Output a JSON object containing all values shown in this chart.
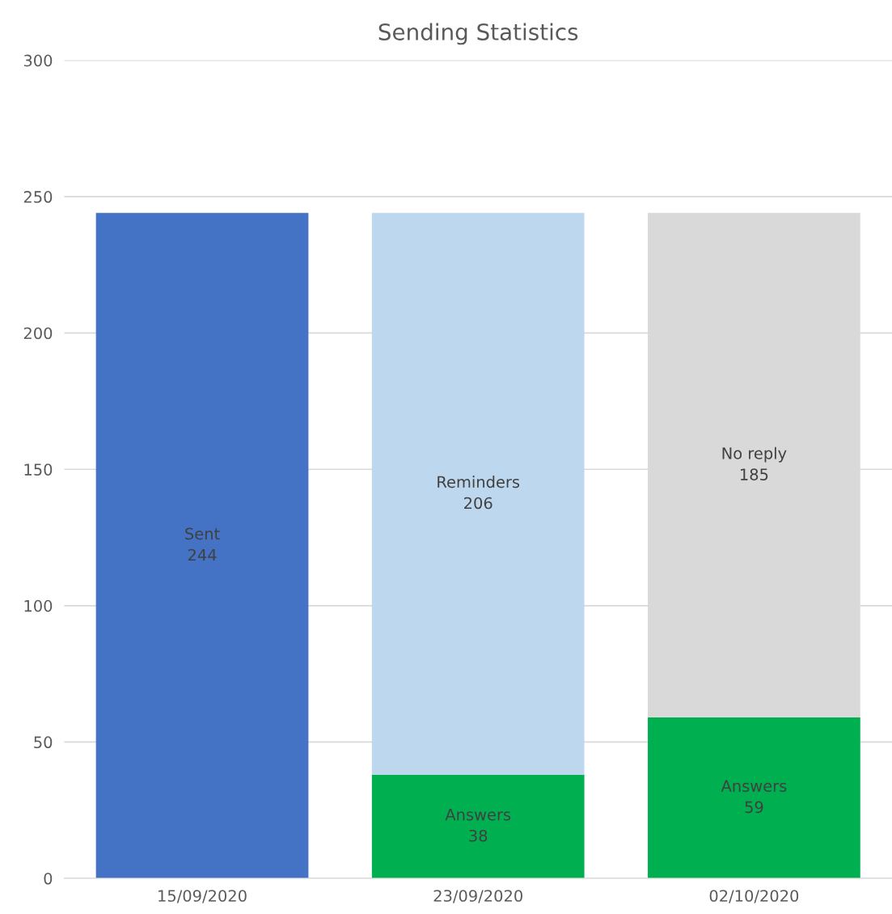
{
  "chart_data": {
    "type": "bar",
    "title": "Sending Statistics",
    "stacked": true,
    "categories": [
      "15/09/2020",
      "23/09/2020",
      "02/10/2020"
    ],
    "series": [
      {
        "name": "Answers",
        "color": "#00b050",
        "values": [
          null,
          38,
          59
        ]
      },
      {
        "name": "Sent",
        "color": "#4472c4",
        "values": [
          244,
          null,
          null
        ]
      },
      {
        "name": "Reminders",
        "color": "#bdd7ee",
        "values": [
          null,
          206,
          null
        ]
      },
      {
        "name": "No reply",
        "color": "#d9d9d9",
        "values": [
          null,
          null,
          185
        ]
      }
    ],
    "ylim": [
      0,
      300
    ],
    "yticks": [
      0,
      50,
      100,
      150,
      200,
      250,
      300
    ],
    "grid": "y",
    "data_labels": true,
    "legend": false
  }
}
